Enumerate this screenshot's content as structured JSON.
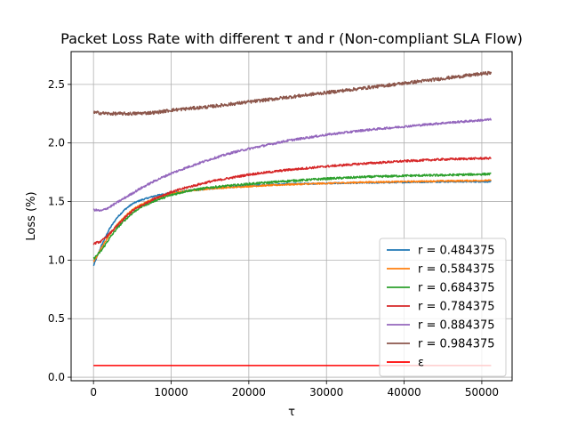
{
  "chart_data": {
    "type": "line",
    "title": "Packet Loss Rate with different τ and r (Non-compliant SLA Flow)",
    "xlabel": "τ",
    "ylabel": "Loss (%)",
    "xlim": [
      -2880,
      53900
    ],
    "ylim": [
      -0.03,
      2.78
    ],
    "xticks": [
      0,
      10000,
      20000,
      30000,
      40000,
      50000
    ],
    "xtick_labels": [
      "0",
      "10000",
      "20000",
      "30000",
      "40000",
      "50000"
    ],
    "yticks": [
      0.0,
      0.5,
      1.0,
      1.5,
      2.0,
      2.5
    ],
    "ytick_labels": [
      "0.0",
      "0.5",
      "1.0",
      "1.5",
      "2.0",
      "2.5"
    ],
    "grid": true,
    "legend_position": "lower-right",
    "series": [
      {
        "name": "r = 0.484375",
        "color": "#1f77b4",
        "x": [
          0,
          1000,
          2000,
          3000,
          4000,
          5000,
          6000,
          8000,
          10000,
          12000,
          15000,
          20000,
          25000,
          30000,
          35000,
          40000,
          45000,
          51200
        ],
        "y": [
          0.95,
          1.12,
          1.26,
          1.36,
          1.43,
          1.48,
          1.51,
          1.55,
          1.575,
          1.59,
          1.61,
          1.635,
          1.65,
          1.655,
          1.66,
          1.665,
          1.67,
          1.67
        ]
      },
      {
        "name": "r = 0.584375",
        "color": "#ff7f0e",
        "x": [
          0,
          1000,
          2000,
          3000,
          4000,
          5000,
          6000,
          8000,
          10000,
          12000,
          15000,
          20000,
          25000,
          30000,
          35000,
          40000,
          45000,
          51200
        ],
        "y": [
          0.98,
          1.1,
          1.21,
          1.3,
          1.37,
          1.43,
          1.47,
          1.53,
          1.57,
          1.59,
          1.61,
          1.63,
          1.645,
          1.655,
          1.665,
          1.67,
          1.675,
          1.68
        ]
      },
      {
        "name": "r = 0.684375",
        "color": "#2ca02c",
        "x": [
          0,
          1000,
          2000,
          3000,
          4000,
          5000,
          6000,
          8000,
          10000,
          12000,
          15000,
          20000,
          25000,
          30000,
          35000,
          40000,
          45000,
          51200
        ],
        "y": [
          1.01,
          1.08,
          1.18,
          1.27,
          1.34,
          1.4,
          1.45,
          1.51,
          1.555,
          1.59,
          1.62,
          1.65,
          1.675,
          1.695,
          1.71,
          1.72,
          1.725,
          1.735
        ]
      },
      {
        "name": "r = 0.784375",
        "color": "#d62728",
        "x": [
          0,
          1000,
          2000,
          3000,
          4000,
          5000,
          6000,
          8000,
          10000,
          12000,
          15000,
          20000,
          25000,
          30000,
          35000,
          40000,
          45000,
          51200
        ],
        "y": [
          1.14,
          1.16,
          1.22,
          1.29,
          1.36,
          1.42,
          1.46,
          1.53,
          1.58,
          1.62,
          1.67,
          1.73,
          1.77,
          1.8,
          1.825,
          1.845,
          1.86,
          1.87
        ]
      },
      {
        "name": "r = 0.884375",
        "color": "#9467bd",
        "x": [
          0,
          1000,
          2000,
          4000,
          6000,
          8000,
          10000,
          12000,
          15000,
          18000,
          20000,
          25000,
          30000,
          35000,
          40000,
          45000,
          51200
        ],
        "y": [
          1.43,
          1.42,
          1.45,
          1.53,
          1.61,
          1.68,
          1.74,
          1.79,
          1.86,
          1.92,
          1.95,
          2.02,
          2.07,
          2.11,
          2.14,
          2.17,
          2.2
        ]
      },
      {
        "name": "r = 0.984375",
        "color": "#8c564b",
        "x": [
          0,
          2000,
          5000,
          8000,
          10000,
          15000,
          20000,
          25000,
          30000,
          35000,
          40000,
          45000,
          51200
        ],
        "y": [
          2.26,
          2.25,
          2.25,
          2.26,
          2.28,
          2.31,
          2.35,
          2.39,
          2.43,
          2.47,
          2.51,
          2.55,
          2.6
        ]
      },
      {
        "name": "ε",
        "color": "#ff0000",
        "x": [
          0,
          51200
        ],
        "y": [
          0.1,
          0.1
        ]
      }
    ]
  }
}
